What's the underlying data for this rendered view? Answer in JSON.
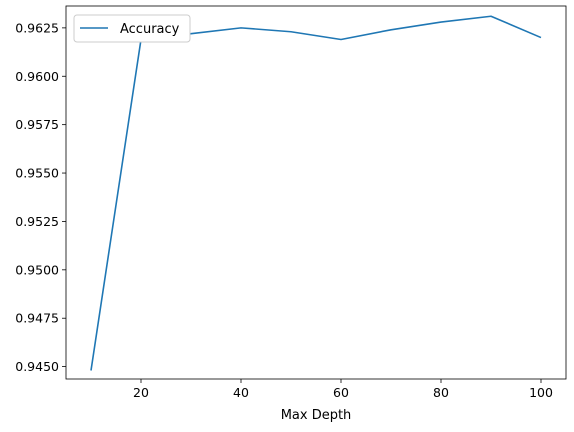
{
  "chart_data": {
    "type": "line",
    "title": "",
    "xlabel": "Max Depth",
    "ylabel": "",
    "x": [
      10,
      20,
      30,
      40,
      50,
      60,
      70,
      80,
      90,
      100
    ],
    "series": [
      {
        "name": "Accuracy",
        "color": "#1f77b4",
        "values": [
          0.9448,
          0.9619,
          0.9622,
          0.9625,
          0.9623,
          0.9619,
          0.9624,
          0.9628,
          0.9631,
          0.962
        ]
      }
    ],
    "xlim": [
      5,
      105
    ],
    "ylim": [
      0.94436,
      0.96363
    ],
    "x_ticks": [
      20,
      40,
      60,
      80,
      100
    ],
    "x_tick_labels": [
      "20",
      "40",
      "60",
      "80",
      "100"
    ],
    "y_ticks": [
      0.945,
      0.9475,
      0.95,
      0.9525,
      0.955,
      0.9575,
      0.96,
      0.9625
    ],
    "y_tick_labels": [
      "0.9450",
      "0.9475",
      "0.9500",
      "0.9525",
      "0.9550",
      "0.9575",
      "0.9600",
      "0.9625"
    ],
    "grid": false,
    "legend_position": "upper-left"
  }
}
